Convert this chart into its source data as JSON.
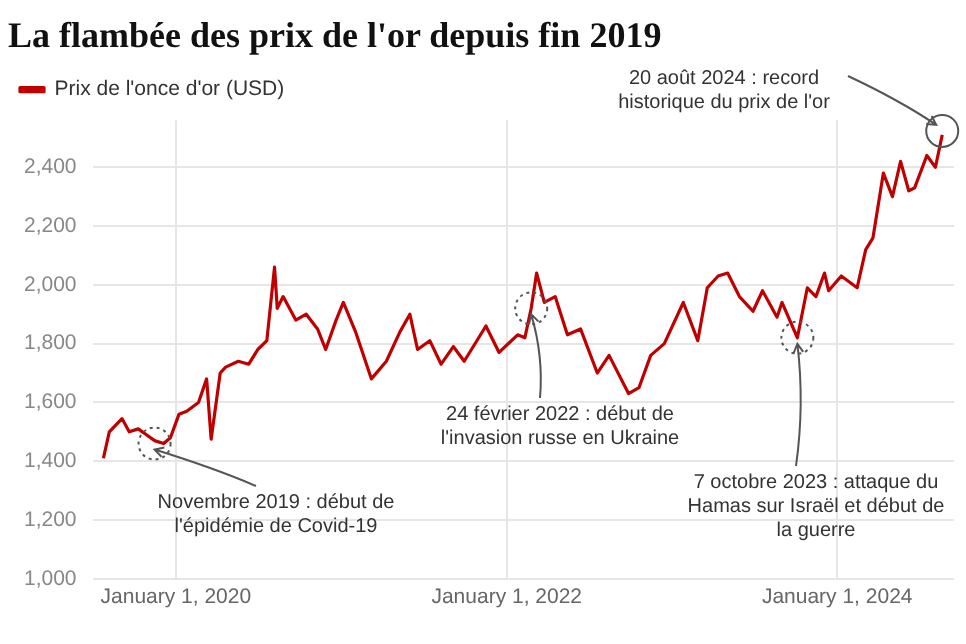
{
  "chart_data": {
    "type": "line",
    "title": "La flambée des prix de l'or depuis fin 2019",
    "x": [
      "2019-07-25",
      "2019-08-07",
      "2019-09-04",
      "2019-09-20",
      "2019-10-10",
      "2019-10-28",
      "2019-11-15",
      "2019-12-05",
      "2019-12-20",
      "2020-01-08",
      "2020-01-25",
      "2020-02-20",
      "2020-03-09",
      "2020-03-19",
      "2020-04-08",
      "2020-04-20",
      "2020-05-18",
      "2020-06-10",
      "2020-06-30",
      "2020-07-20",
      "2020-08-06",
      "2020-08-12",
      "2020-08-25",
      "2020-09-22",
      "2020-10-15",
      "2020-11-09",
      "2020-11-27",
      "2020-12-20",
      "2021-01-05",
      "2021-02-01",
      "2021-03-08",
      "2021-04-10",
      "2021-05-10",
      "2021-06-01",
      "2021-06-18",
      "2021-07-15",
      "2021-08-09",
      "2021-09-05",
      "2021-09-29",
      "2021-11-16",
      "2021-12-15",
      "2022-01-25",
      "2022-02-10",
      "2022-02-24",
      "2022-03-08",
      "2022-03-25",
      "2022-04-18",
      "2022-05-15",
      "2022-06-13",
      "2022-07-20",
      "2022-08-15",
      "2022-09-27",
      "2022-10-20",
      "2022-11-15",
      "2022-12-15",
      "2023-01-26",
      "2023-02-27",
      "2023-03-20",
      "2023-04-13",
      "2023-05-04",
      "2023-05-30",
      "2023-06-29",
      "2023-07-20",
      "2023-08-21",
      "2023-09-01",
      "2023-10-05",
      "2023-10-27",
      "2023-11-15",
      "2023-12-04",
      "2023-12-13",
      "2024-01-10",
      "2024-02-14",
      "2024-03-04",
      "2024-03-20",
      "2024-04-12",
      "2024-05-02",
      "2024-05-20",
      "2024-06-07",
      "2024-06-20",
      "2024-07-17",
      "2024-08-05",
      "2024-08-20"
    ],
    "series": [
      {
        "name": "Prix de l'once d'or (USD)",
        "color": "#c00000",
        "values": [
          1410,
          1500,
          1545,
          1500,
          1510,
          1490,
          1470,
          1460,
          1480,
          1560,
          1570,
          1600,
          1680,
          1475,
          1700,
          1720,
          1740,
          1730,
          1780,
          1810,
          2060,
          1920,
          1960,
          1880,
          1900,
          1850,
          1780,
          1880,
          1940,
          1840,
          1680,
          1740,
          1840,
          1900,
          1780,
          1810,
          1730,
          1790,
          1740,
          1860,
          1770,
          1830,
          1820,
          1920,
          2040,
          1940,
          1960,
          1830,
          1850,
          1700,
          1760,
          1630,
          1650,
          1760,
          1800,
          1940,
          1810,
          1990,
          2030,
          2040,
          1960,
          1910,
          1980,
          1890,
          1940,
          1820,
          1990,
          1960,
          2040,
          1980,
          2030,
          1990,
          2120,
          2160,
          2380,
          2300,
          2420,
          2320,
          2330,
          2440,
          2400,
          2510
        ]
      }
    ],
    "xlim": [
      "2019-07-01",
      "2024-09-15"
    ],
    "xticks": [
      {
        "value": "2020-01-01",
        "label": "January 1, 2020"
      },
      {
        "value": "2022-01-01",
        "label": "January 1, 2022"
      },
      {
        "value": "2024-01-01",
        "label": "January 1, 2024"
      }
    ],
    "ylim": [
      1000,
      2560
    ],
    "yticks": [
      {
        "value": 1000,
        "label": "1,000"
      },
      {
        "value": 1200,
        "label": "1,200"
      },
      {
        "value": 1400,
        "label": "1,400"
      },
      {
        "value": 1600,
        "label": "1,600"
      },
      {
        "value": 1800,
        "label": "1,800"
      },
      {
        "value": 2000,
        "label": "2,000"
      },
      {
        "value": 2200,
        "label": "2,200"
      },
      {
        "value": 2400,
        "label": "2,400"
      }
    ],
    "grid": true,
    "legend": "top left",
    "marker": "none",
    "line_style": "solid",
    "annotations": [
      {
        "text": "Novembre 2019 : début de l'épidémie de Covid-19",
        "x": "2019-11-15",
        "y": 1460
      },
      {
        "text": "24 février 2022 : début de l'invasion russe en Ukraine",
        "x": "2022-02-24",
        "y": 1920
      },
      {
        "text": "7 octobre 2023 : attaque du Hamas sur Israël et début de la guerre",
        "x": "2023-10-05",
        "y": 1820
      },
      {
        "text": "20 août 2024 : record historique du prix de l'or",
        "x": "2024-08-20",
        "y": 2510
      }
    ]
  }
}
